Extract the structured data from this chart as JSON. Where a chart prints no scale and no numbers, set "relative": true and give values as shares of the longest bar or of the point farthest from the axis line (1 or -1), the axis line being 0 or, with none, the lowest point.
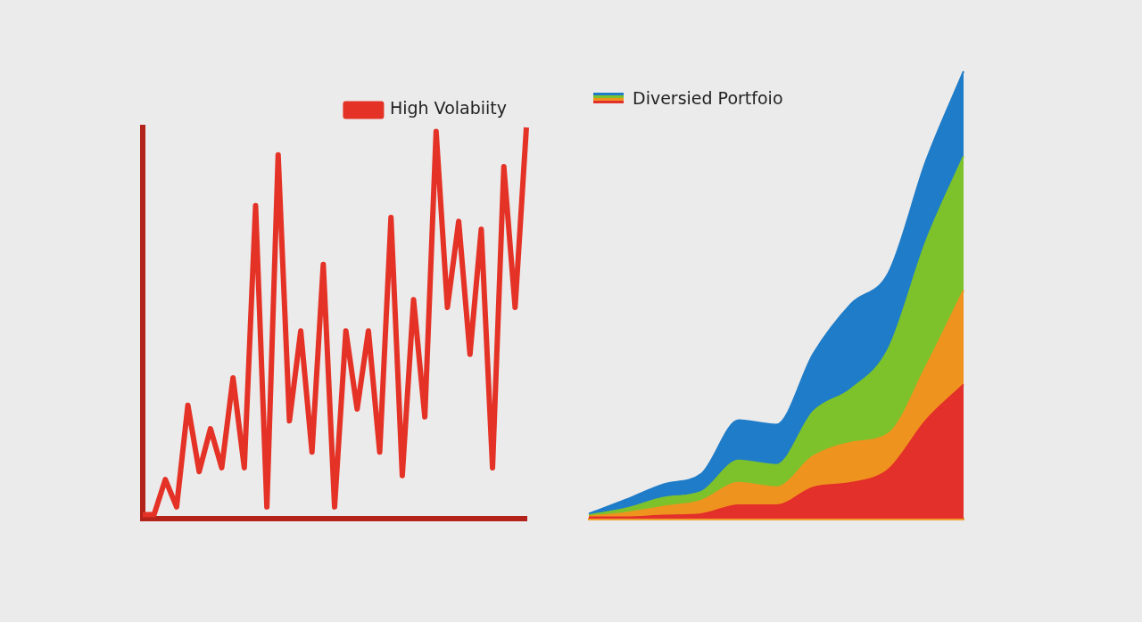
{
  "chart_data": [
    {
      "type": "line",
      "relative": true,
      "legend": "top",
      "marker": "none",
      "categories": [
        null,
        null,
        null,
        null,
        null,
        null,
        null,
        null,
        null,
        null,
        null,
        null,
        null,
        null,
        null,
        null,
        null,
        null,
        null,
        null,
        null,
        null,
        null,
        null,
        null,
        null,
        null,
        null,
        null,
        null,
        null,
        null,
        null,
        null,
        null
      ],
      "series": [
        {
          "name": "High Volabiity",
          "color": "#e53226",
          "values": [
            0.01,
            0.01,
            0.1,
            0.03,
            0.29,
            0.12,
            0.23,
            0.13,
            0.36,
            0.13,
            0.8,
            0.03,
            0.93,
            0.25,
            0.48,
            0.17,
            0.65,
            0.03,
            0.48,
            0.28,
            0.48,
            0.17,
            0.77,
            0.11,
            0.56,
            0.26,
            0.99,
            0.54,
            0.76,
            0.42,
            0.74,
            0.13,
            0.9,
            0.54,
            1.0
          ]
        }
      ]
    },
    {
      "type": "area",
      "relative": true,
      "stacked": true,
      "title": "Diversied Portfoio",
      "categories": [
        null,
        null,
        null,
        null,
        null,
        null,
        null,
        null,
        null,
        null,
        null
      ],
      "series": [
        {
          "color": "#e3302a",
          "values": [
            0.003,
            0.003,
            0.007,
            0.01,
            0.03,
            0.03,
            0.07,
            0.08,
            0.11,
            0.22,
            0.3
          ]
        },
        {
          "color": "#ef931f",
          "values": [
            0.002,
            0.01,
            0.02,
            0.03,
            0.05,
            0.04,
            0.07,
            0.09,
            0.08,
            0.12,
            0.21
          ]
        },
        {
          "color": "#7dc22b",
          "values": [
            0.003,
            0.01,
            0.02,
            0.02,
            0.05,
            0.05,
            0.1,
            0.12,
            0.19,
            0.28,
            0.3
          ]
        },
        {
          "color": "#1f7cc8",
          "values": [
            0.003,
            0.02,
            0.03,
            0.04,
            0.09,
            0.09,
            0.13,
            0.19,
            0.17,
            0.18,
            0.19
          ]
        }
      ]
    }
  ]
}
